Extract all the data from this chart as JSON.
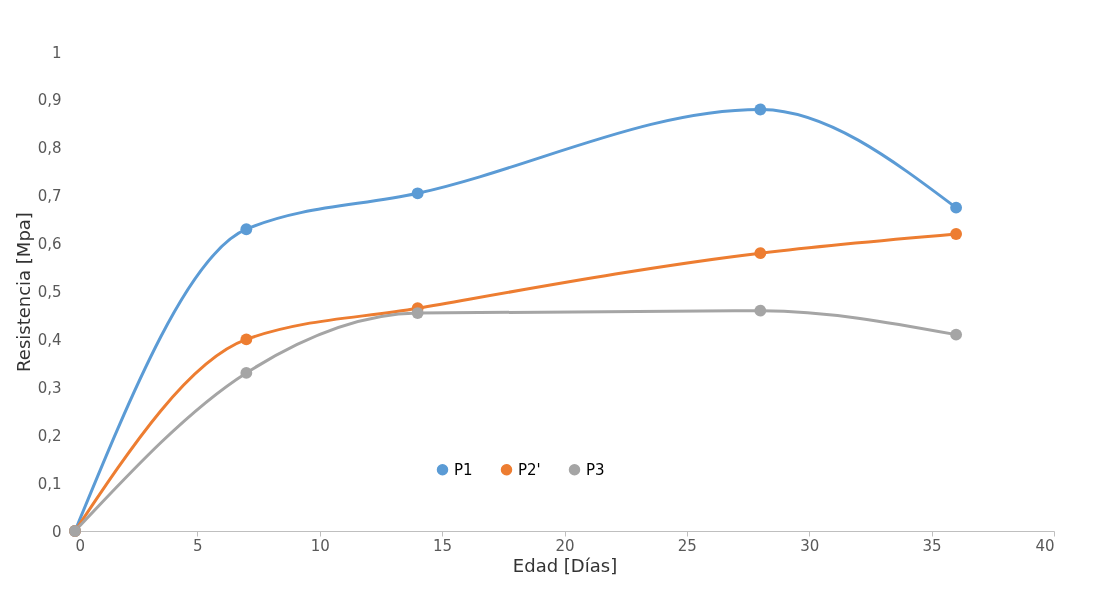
{
  "chart_data": {
    "type": "line",
    "xlabel": "Edad [Días]",
    "ylabel": "Resistencia [Mpa]",
    "x": [
      0,
      7,
      14,
      28,
      36
    ],
    "series": [
      {
        "name": "P1",
        "color": "#5b9bd5",
        "values": [
          0,
          0.63,
          0.705,
          0.88,
          0.675
        ]
      },
      {
        "name": "P2'",
        "color": "#ed7d31",
        "values": [
          0,
          0.4,
          0.465,
          0.58,
          0.62
        ]
      },
      {
        "name": "P3",
        "color": "#a5a5a5",
        "values": [
          0,
          0.33,
          0.455,
          0.46,
          0.41
        ]
      }
    ],
    "xlim": [
      0,
      40
    ],
    "xticks": [
      0,
      5,
      10,
      15,
      20,
      25,
      30,
      35,
      40
    ],
    "ylim": [
      0,
      1
    ],
    "yticks": [
      0,
      {
        "value": 0.1,
        "label": "0,1"
      },
      {
        "value": 0.2,
        "label": "0,2"
      },
      {
        "value": 0.3,
        "label": "0,3"
      },
      {
        "value": 0.4,
        "label": "0,4"
      },
      {
        "value": 0.5,
        "label": "0,5"
      },
      {
        "value": 0.6,
        "label": "0,6"
      },
      {
        "value": 0.7,
        "label": "0,7"
      },
      {
        "value": 0.8,
        "label": "0,8"
      },
      {
        "value": 0.9,
        "label": "0,9"
      },
      1
    ],
    "grid": false,
    "legend": "bottom",
    "marker": "circle",
    "line_style": "solid"
  }
}
